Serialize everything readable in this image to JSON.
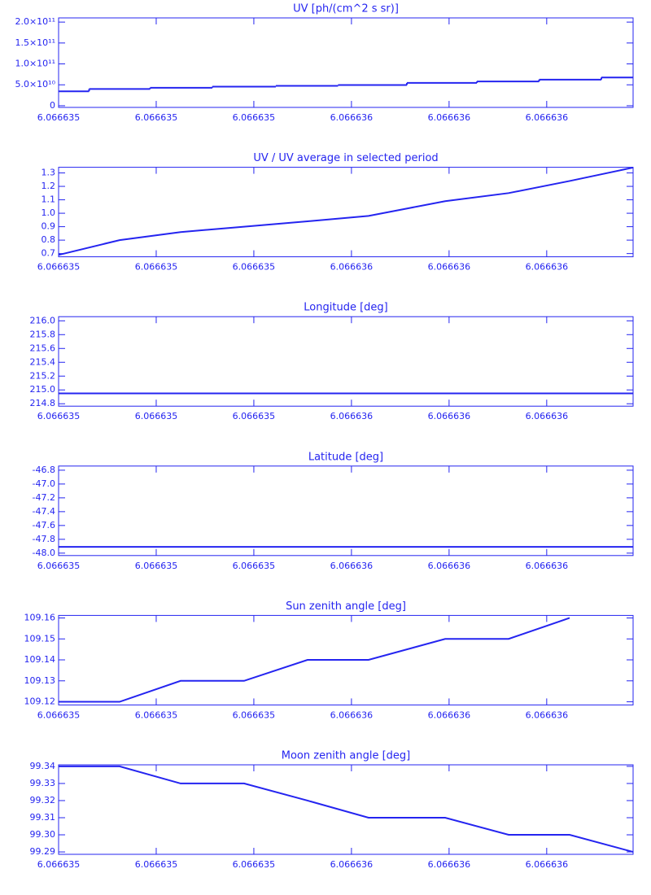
{
  "chart_data": [
    {
      "type": "line",
      "steps": true,
      "title": "UV [ph/(cm^2 s sr)]",
      "color": "#2424f0",
      "x": [
        6.066635,
        6.066635125,
        6.06663525,
        6.06663538,
        6.06663551,
        6.066635635,
        6.066635792,
        6.066635922,
        6.066636047,
        6.066636177
      ],
      "values": [
        34500000000,
        40000000000,
        43000000000,
        45500000000,
        47500000000,
        49500000000,
        54500000000,
        58000000000,
        62500000000,
        67500000000
      ],
      "xlim": [
        6.066635,
        6.066636177
      ],
      "xticks": [
        {
          "value": 6.066635,
          "label": "6.066635"
        },
        {
          "value": 6.0666352,
          "label": "6.066635"
        },
        {
          "value": 6.0666354,
          "label": "6.066635"
        },
        {
          "value": 6.0666356,
          "label": "6.066636"
        },
        {
          "value": 6.0666358,
          "label": "6.066636"
        },
        {
          "value": 6.066636,
          "label": "6.066636"
        }
      ],
      "ylim": [
        -4000000000,
        210000000000
      ],
      "yticks": [
        0,
        {
          "value": 50000000000,
          "label": "5.0×10¹⁰"
        },
        {
          "value": 100000000000,
          "label": "1.0×10¹¹"
        },
        {
          "value": 150000000000,
          "label": "1.5×10¹¹"
        },
        {
          "value": 200000000000,
          "label": "2.0×10¹¹"
        }
      ]
    },
    {
      "type": "line",
      "title": "UV / UV average in selected period",
      "color": "#2424f0",
      "x": [
        6.066635,
        6.066635125,
        6.06663525,
        6.06663538,
        6.06663551,
        6.066635635,
        6.066635792,
        6.066635922,
        6.066636047,
        6.066636177
      ],
      "values": [
        0.69,
        0.8,
        0.86,
        0.9,
        0.94,
        0.98,
        1.09,
        1.15,
        1.24,
        1.34
      ],
      "xlim": [
        6.066635,
        6.066636177
      ],
      "xticks": [
        {
          "value": 6.066635,
          "label": "6.066635"
        },
        {
          "value": 6.0666352,
          "label": "6.066635"
        },
        {
          "value": 6.0666354,
          "label": "6.066635"
        },
        {
          "value": 6.0666356,
          "label": "6.066636"
        },
        {
          "value": 6.0666358,
          "label": "6.066636"
        },
        {
          "value": 6.066636,
          "label": "6.066636"
        }
      ],
      "ylim": [
        0.676,
        1.342
      ],
      "yticks": [
        0.7,
        0.8,
        0.9,
        {
          "value": 1,
          "label": "1.0"
        },
        1.1,
        1.2,
        1.3
      ]
    },
    {
      "type": "line",
      "title": "Longitude [deg]",
      "color": "#2424f0",
      "x": [
        6.066635,
        6.066635125,
        6.06663525,
        6.06663538,
        6.06663551,
        6.066635635,
        6.066635792,
        6.066635922,
        6.066636047,
        6.066636177
      ],
      "values": [
        214.95,
        214.95,
        214.95,
        214.95,
        214.95,
        214.95,
        214.95,
        214.95,
        214.95,
        214.95
      ],
      "xlim": [
        6.066635,
        6.066636177
      ],
      "xticks": [
        {
          "value": 6.066635,
          "label": "6.066635"
        },
        {
          "value": 6.0666352,
          "label": "6.066635"
        },
        {
          "value": 6.0666354,
          "label": "6.066635"
        },
        {
          "value": 6.0666356,
          "label": "6.066636"
        },
        {
          "value": 6.0666358,
          "label": "6.066636"
        },
        {
          "value": 6.066636,
          "label": "6.066636"
        }
      ],
      "ylim": [
        214.765,
        216.06
      ],
      "yticks": [
        214.8,
        {
          "value": 215,
          "label": "215.0"
        },
        215.2,
        215.4,
        215.6,
        215.8,
        {
          "value": 216,
          "label": "216.0"
        }
      ]
    },
    {
      "type": "line",
      "title": "Latitude [deg]",
      "color": "#2424f0",
      "x": [
        6.066635,
        6.066635125,
        6.06663525,
        6.06663538,
        6.06663551,
        6.066635635,
        6.066635792,
        6.066635922,
        6.066636047,
        6.066636177
      ],
      "values": [
        -47.91,
        -47.91,
        -47.91,
        -47.91,
        -47.91,
        -47.91,
        -47.91,
        -47.91,
        -47.91,
        -47.91
      ],
      "xlim": [
        6.066635,
        6.066636177
      ],
      "xticks": [
        {
          "value": 6.066635,
          "label": "6.066635"
        },
        {
          "value": 6.0666352,
          "label": "6.066635"
        },
        {
          "value": 6.0666354,
          "label": "6.066635"
        },
        {
          "value": 6.0666356,
          "label": "6.066636"
        },
        {
          "value": 6.0666358,
          "label": "6.066636"
        },
        {
          "value": 6.066636,
          "label": "6.066636"
        }
      ],
      "ylim": [
        -48.035,
        -46.74
      ],
      "yticks": [
        {
          "value": -48,
          "label": "-48.0"
        },
        -47.8,
        -47.6,
        -47.4,
        -47.2,
        {
          "value": -47,
          "label": "-47.0"
        },
        -46.8
      ]
    },
    {
      "type": "line",
      "title": "Sun zenith angle [deg]",
      "color": "#2424f0",
      "x": [
        6.066635,
        6.066635125,
        6.06663525,
        6.06663538,
        6.06663551,
        6.066635635,
        6.066635792,
        6.066635922,
        6.066636047,
        6.066636177
      ],
      "values": [
        109.12,
        109.12,
        109.13,
        109.13,
        109.14,
        109.14,
        109.15,
        109.15,
        109.16,
        null
      ],
      "xlim": [
        6.066635,
        6.066636177
      ],
      "xticks": [
        {
          "value": 6.066635,
          "label": "6.066635"
        },
        {
          "value": 6.0666352,
          "label": "6.066635"
        },
        {
          "value": 6.0666354,
          "label": "6.066635"
        },
        {
          "value": 6.0666356,
          "label": "6.066636"
        },
        {
          "value": 6.0666358,
          "label": "6.066636"
        },
        {
          "value": 6.066636,
          "label": "6.066636"
        }
      ],
      "ylim": [
        109.1185,
        109.1612
      ],
      "yticks": [
        109.12,
        109.13,
        109.14,
        109.15,
        109.16
      ]
    },
    {
      "type": "line",
      "title": "Moon zenith angle [deg]",
      "color": "#2424f0",
      "x": [
        6.066635,
        6.066635125,
        6.06663525,
        6.06663538,
        6.06663551,
        6.066635635,
        6.066635792,
        6.066635922,
        6.066636047,
        6.066636177
      ],
      "values": [
        99.34,
        99.34,
        99.33,
        99.33,
        99.32,
        99.31,
        99.31,
        99.3,
        99.3,
        99.29
      ],
      "xlim": [
        6.066635,
        6.066636177
      ],
      "xticks": [
        {
          "value": 6.066635,
          "label": "6.066635"
        },
        {
          "value": 6.0666352,
          "label": "6.066635"
        },
        {
          "value": 6.0666354,
          "label": "6.066635"
        },
        {
          "value": 6.0666356,
          "label": "6.066636"
        },
        {
          "value": 6.0666358,
          "label": "6.066636"
        },
        {
          "value": 6.066636,
          "label": "6.066636"
        }
      ],
      "ylim": [
        99.2886,
        99.3409
      ],
      "yticks": [
        99.29,
        {
          "value": 99.3,
          "label": "99.30"
        },
        99.31,
        99.32,
        99.33,
        99.34
      ]
    }
  ]
}
